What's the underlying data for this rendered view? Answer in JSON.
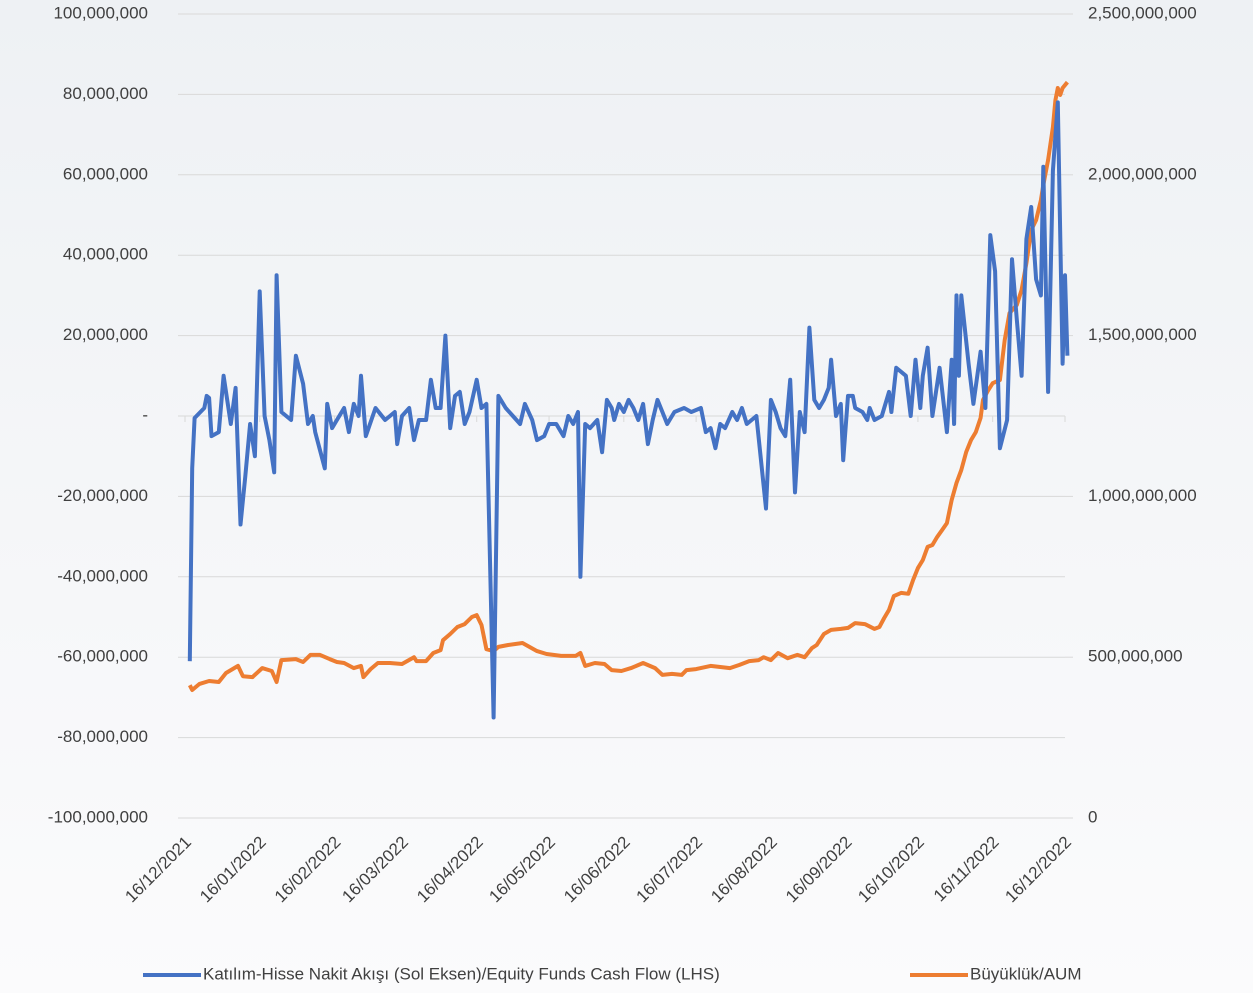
{
  "chart_data": {
    "type": "line",
    "series": [
      {
        "name": "Katılım-Hisse Nakit Akışı (Sol Eksen)/Equity Funds Cash Flow (LHS)",
        "color": "#4472c4",
        "axis": "y",
        "x": [
          "18/12/2021",
          "19/12/2021",
          "20/12/2021",
          "24/12/2021",
          "25/12/2021",
          "26/12/2021",
          "27/12/2021",
          "30/12/2021",
          "01/01/2022",
          "04/01/2022",
          "06/01/2022",
          "08/01/2022",
          "10/01/2022",
          "12/01/2022",
          "14/01/2022",
          "16/01/2022",
          "18/01/2022",
          "20/01/2022",
          "22/01/2022",
          "23/01/2022",
          "25/01/2022",
          "29/01/2022",
          "31/01/2022",
          "03/02/2022",
          "05/02/2022",
          "07/02/2022",
          "08/02/2022",
          "12/02/2022",
          "13/02/2022",
          "15/02/2022",
          "17/02/2022",
          "20/02/2022",
          "22/02/2022",
          "24/02/2022",
          "26/02/2022",
          "27/02/2022",
          "01/03/2022",
          "05/03/2022",
          "09/03/2022",
          "13/03/2022",
          "14/03/2022",
          "16/03/2022",
          "19/03/2022",
          "21/03/2022",
          "23/03/2022",
          "26/03/2022",
          "28/03/2022",
          "30/03/2022",
          "01/04/2022",
          "03/04/2022",
          "05/04/2022",
          "07/04/2022",
          "09/04/2022",
          "11/04/2022",
          "13/04/2022",
          "16/04/2022",
          "18/04/2022",
          "20/04/2022",
          "23/04/2022",
          "25/04/2022",
          "28/04/2022",
          "01/05/2022",
          "04/05/2022",
          "06/05/2022",
          "09/05/2022",
          "11/05/2022",
          "14/05/2022",
          "16/05/2022",
          "19/05/2022",
          "22/05/2022",
          "24/05/2022",
          "26/05/2022",
          "28/05/2022",
          "29/05/2022",
          "31/05/2022",
          "02/06/2022",
          "05/06/2022",
          "07/06/2022",
          "09/06/2022",
          "11/06/2022",
          "12/06/2022",
          "14/06/2022",
          "16/06/2022",
          "18/06/2022",
          "20/06/2022",
          "22/06/2022",
          "24/06/2022",
          "26/06/2022",
          "28/06/2022",
          "30/06/2022",
          "02/07/2022",
          "04/07/2022",
          "07/07/2022",
          "11/07/2022",
          "14/07/2022",
          "18/07/2022",
          "20/07/2022",
          "22/07/2022",
          "24/07/2022",
          "26/07/2022",
          "28/07/2022",
          "31/07/2022",
          "02/08/2022",
          "04/08/2022",
          "06/08/2022",
          "08/08/2022",
          "10/08/2022",
          "14/08/2022",
          "16/08/2022",
          "18/08/2022",
          "20/08/2022",
          "22/08/2022",
          "24/08/2022",
          "26/08/2022",
          "28/08/2022",
          "30/08/2022",
          "01/09/2022",
          "03/09/2022",
          "05/09/2022",
          "07/09/2022",
          "09/09/2022",
          "10/09/2022",
          "12/09/2022",
          "14/09/2022",
          "15/09/2022",
          "17/09/2022",
          "19/09/2022",
          "20/09/2022",
          "23/09/2022",
          "25/09/2022",
          "26/09/2022",
          "28/09/2022",
          "01/10/2022",
          "04/10/2022",
          "05/10/2022",
          "07/10/2022",
          "09/10/2022",
          "11/10/2022",
          "13/10/2022",
          "15/10/2022",
          "17/10/2022",
          "18/10/2022",
          "20/10/2022",
          "22/10/2022",
          "25/10/2022",
          "28/10/2022",
          "30/10/2022",
          "31/10/2022",
          "01/11/2022",
          "02/11/2022",
          "03/11/2022",
          "06/11/2022",
          "08/11/2022",
          "11/11/2022",
          "13/11/2022",
          "15/11/2022",
          "17/11/2022",
          "19/11/2022",
          "22/11/2022",
          "24/11/2022",
          "26/11/2022",
          "28/11/2022",
          "30/11/2022",
          "02/12/2022",
          "04/12/2022",
          "06/12/2022",
          "07/12/2022",
          "09/12/2022",
          "11/12/2022",
          "13/12/2022",
          "15/12/2022",
          "16/12/2022",
          "17/12/2022"
        ],
        "values": [
          -61000000,
          -13000000,
          -500000,
          2000000,
          5000000,
          4500000,
          -5000000,
          -4000000,
          10000000,
          -2000000,
          7000000,
          -27000000,
          -15000000,
          -2000000,
          -10000000,
          31000000,
          0,
          -6000000,
          -14000000,
          35000000,
          1000000,
          -1000000,
          15000000,
          8000000,
          -2000000,
          0,
          -4000000,
          -13000000,
          3000000,
          -3000000,
          -1000000,
          2000000,
          -4000000,
          3000000,
          0,
          10000000,
          -5000000,
          2000000,
          -1000000,
          1000000,
          -7000000,
          0,
          2000000,
          -6000000,
          -1000000,
          -1000000,
          9000000,
          2000000,
          2000000,
          20000000,
          -3000000,
          5000000,
          6000000,
          -2000000,
          1000000,
          9000000,
          2000000,
          3000000,
          -75000000,
          5000000,
          2000000,
          0,
          -2000000,
          3000000,
          -1000000,
          -6000000,
          -5000000,
          -2000000,
          -2000000,
          -5000000,
          0,
          -2000000,
          1000000,
          -40000000,
          -2000000,
          -3000000,
          -1000000,
          -9000000,
          4000000,
          2000000,
          -1000000,
          3000000,
          1000000,
          4000000,
          2000000,
          -1000000,
          3000000,
          -7000000,
          -1000000,
          4000000,
          1000000,
          -2000000,
          1000000,
          2000000,
          1000000,
          2000000,
          -4000000,
          -3000000,
          -8000000,
          -2000000,
          -3000000,
          1000000,
          -1000000,
          2000000,
          -2000000,
          -1000000,
          0,
          -23000000,
          4000000,
          1000000,
          -3000000,
          -5000000,
          9000000,
          -19000000,
          1000000,
          -4000000,
          22000000,
          4000000,
          2000000,
          4000000,
          7000000,
          14000000,
          0,
          3000000,
          -11000000,
          5000000,
          5000000,
          2000000,
          1000000,
          -1000000,
          2000000,
          -1000000,
          0,
          6000000,
          1000000,
          12000000,
          11000000,
          10000000,
          0,
          14000000,
          2000000,
          10000000,
          17000000,
          0,
          12000000,
          -4000000,
          14000000,
          -2000000,
          30000000,
          10000000,
          30000000,
          13000000,
          3000000,
          16000000,
          2000000,
          45000000,
          36000000,
          -8000000,
          -1000000,
          39000000,
          24000000,
          10000000,
          44000000,
          52000000,
          34000000,
          30000000,
          62000000,
          6000000,
          61000000,
          78000000,
          13000000,
          35000000,
          15000000
        ]
      },
      {
        "name": "Büyüklük/AUM",
        "color": "#ed7d31",
        "axis": "y2",
        "x": [
          "18/12/2021",
          "19/12/2021",
          "22/12/2021",
          "26/12/2021",
          "30/12/2021",
          "02/01/2022",
          "07/01/2022",
          "09/01/2022",
          "13/01/2022",
          "17/01/2022",
          "21/01/2022",
          "23/01/2022",
          "25/01/2022",
          "31/01/2022",
          "03/02/2022",
          "06/02/2022",
          "10/02/2022",
          "14/02/2022",
          "17/02/2022",
          "20/02/2022",
          "24/02/2022",
          "27/02/2022",
          "28/02/2022",
          "03/03/2022",
          "06/03/2022",
          "11/03/2022",
          "16/03/2022",
          "21/03/2022",
          "22/03/2022",
          "26/03/2022",
          "29/03/2022",
          "01/04/2022",
          "02/04/2022",
          "05/04/2022",
          "08/04/2022",
          "11/04/2022",
          "14/04/2022",
          "16/04/2022",
          "18/04/2022",
          "20/04/2022",
          "23/04/2022",
          "25/04/2022",
          "29/04/2022",
          "05/05/2022",
          "11/05/2022",
          "15/05/2022",
          "21/05/2022",
          "27/05/2022",
          "29/05/2022",
          "31/05/2022",
          "04/06/2022",
          "08/06/2022",
          "11/06/2022",
          "15/06/2022",
          "19/06/2022",
          "24/06/2022",
          "29/06/2022",
          "02/07/2022",
          "06/07/2022",
          "10/07/2022",
          "12/07/2022",
          "16/07/2022",
          "22/07/2022",
          "30/07/2022",
          "03/08/2022",
          "07/08/2022",
          "11/08/2022",
          "13/08/2022",
          "16/08/2022",
          "19/08/2022",
          "23/08/2022",
          "27/08/2022",
          "30/08/2022",
          "02/09/2022",
          "04/09/2022",
          "07/09/2022",
          "10/09/2022",
          "14/09/2022",
          "17/09/2022",
          "20/09/2022",
          "24/09/2022",
          "28/09/2022",
          "30/09/2022",
          "02/10/2022",
          "04/10/2022",
          "06/10/2022",
          "09/10/2022",
          "12/10/2022",
          "14/10/2022",
          "16/10/2022",
          "18/10/2022",
          "20/10/2022",
          "22/10/2022",
          "24/10/2022",
          "26/10/2022",
          "28/10/2022",
          "30/10/2022",
          "01/11/2022",
          "03/11/2022",
          "05/11/2022",
          "07/11/2022",
          "09/11/2022",
          "11/11/2022",
          "12/11/2022",
          "14/11/2022",
          "16/11/2022",
          "19/11/2022",
          "21/11/2022",
          "23/11/2022",
          "26/11/2022",
          "28/11/2022",
          "30/11/2022",
          "02/12/2022",
          "04/12/2022",
          "06/12/2022",
          "07/12/2022",
          "09/12/2022",
          "11/12/2022",
          "12/12/2022",
          "13/12/2022",
          "14/12/2022",
          "15/12/2022",
          "17/12/2022"
        ],
        "values": [
          413000000,
          398000000,
          417000000,
          426000000,
          423000000,
          451000000,
          473000000,
          441000000,
          438000000,
          466000000,
          457000000,
          423000000,
          491000000,
          494000000,
          485000000,
          507000000,
          507000000,
          494000000,
          485000000,
          482000000,
          466000000,
          473000000,
          438000000,
          463000000,
          482000000,
          482000000,
          479000000,
          500000000,
          488000000,
          488000000,
          513000000,
          522000000,
          553000000,
          572000000,
          594000000,
          603000000,
          625000000,
          631000000,
          600000000,
          525000000,
          519000000,
          532000000,
          538000000,
          544000000,
          519000000,
          510000000,
          504000000,
          504000000,
          513000000,
          473000000,
          482000000,
          479000000,
          460000000,
          457000000,
          466000000,
          482000000,
          466000000,
          445000000,
          448000000,
          445000000,
          460000000,
          463000000,
          473000000,
          466000000,
          476000000,
          488000000,
          491000000,
          500000000,
          491000000,
          513000000,
          497000000,
          507000000,
          500000000,
          528000000,
          538000000,
          572000000,
          585000000,
          588000000,
          591000000,
          606000000,
          603000000,
          588000000,
          594000000,
          622000000,
          647000000,
          690000000,
          700000000,
          697000000,
          740000000,
          777000000,
          802000000,
          843000000,
          849000000,
          874000000,
          895000000,
          917000000,
          989000000,
          1042000000,
          1082000000,
          1138000000,
          1175000000,
          1200000000,
          1244000000,
          1300000000,
          1328000000,
          1352000000,
          1362000000,
          1486000000,
          1570000000,
          1595000000,
          1642000000,
          1725000000,
          1828000000,
          1859000000,
          1921000000,
          1968000000,
          2046000000,
          2148000000,
          2232000000,
          2270000000,
          2248000000,
          2270000000,
          2288000000
        ]
      }
    ],
    "xlim": [
      "16/12/2021",
      "16/12/2022"
    ],
    "xticks": [
      "16/12/2021",
      "16/01/2022",
      "16/02/2022",
      "16/03/2022",
      "16/04/2022",
      "16/05/2022",
      "16/06/2022",
      "16/07/2022",
      "16/08/2022",
      "16/09/2022",
      "16/10/2022",
      "16/11/2022",
      "16/12/2022"
    ],
    "ylim": [
      -100000000,
      100000000
    ],
    "yticks": [
      {
        "value": -100000000,
        "label": "-100,000,000"
      },
      {
        "value": -80000000,
        "label": "-80,000,000"
      },
      {
        "value": -60000000,
        "label": "-60,000,000"
      },
      {
        "value": -40000000,
        "label": "-40,000,000"
      },
      {
        "value": -20000000,
        "label": "-20,000,000"
      },
      {
        "value": 0,
        "label": "-"
      },
      {
        "value": 20000000,
        "label": "20,000,000"
      },
      {
        "value": 40000000,
        "label": "40,000,000"
      },
      {
        "value": 60000000,
        "label": "60,000,000"
      },
      {
        "value": 80000000,
        "label": "80,000,000"
      },
      {
        "value": 100000000,
        "label": "100,000,000"
      }
    ],
    "y2lim": [
      0,
      2500000000
    ],
    "y2ticks": [
      0,
      {
        "value": 500000000,
        "label": "500,000,000"
      },
      {
        "value": 1000000000,
        "label": "1,000,000,000"
      },
      {
        "value": 1500000000,
        "label": "1,500,000,000"
      },
      {
        "value": 2000000000,
        "label": "2,000,000,000"
      },
      {
        "value": 2500000000,
        "label": "2,500,000,000"
      }
    ],
    "grid": true,
    "legend": "bottom"
  }
}
